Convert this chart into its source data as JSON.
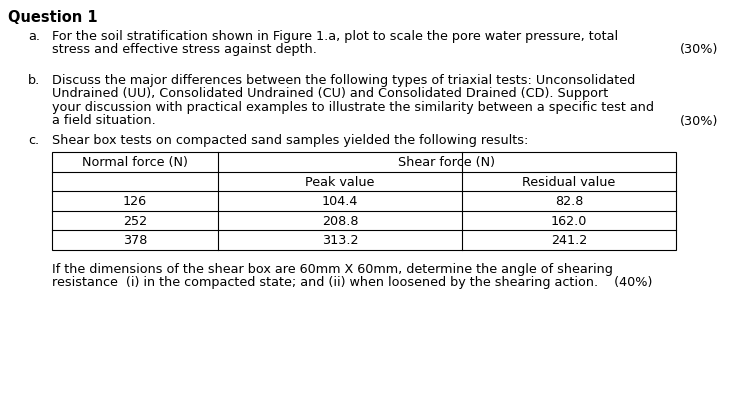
{
  "title": "Question 1",
  "title_fontsize": 10.5,
  "body_fontsize": 9.2,
  "background_color": "#ffffff",
  "text_color": "#000000",
  "part_a_label": "a.",
  "part_a_text_line1": "For the soil stratification shown in Figure 1.a, plot to scale the pore water pressure, total",
  "part_a_text_line2": "stress and effective stress against depth.",
  "part_a_mark": "(30%)",
  "part_b_label": "b.",
  "part_b_text_line1": "Discuss the major differences between the following types of triaxial tests: Unconsolidated",
  "part_b_text_line2": "Undrained (UU), Consolidated Undrained (CU) and Consolidated Drained (CD). Support",
  "part_b_text_line3": "your discussion with practical examples to illustrate the similarity between a specific test and",
  "part_b_text_line4": "a field situation.",
  "part_b_mark": "(30%)",
  "part_c_label": "c.",
  "part_c_text": "Shear box tests on compacted sand samples yielded the following results:",
  "table_col1_header": "Normal force (N)",
  "table_col2_header": "Shear force (N)",
  "table_sub_col2": "Peak value",
  "table_sub_col3": "Residual value",
  "table_data": [
    [
      126,
      104.4,
      82.8
    ],
    [
      252,
      208.8,
      162.0
    ],
    [
      378,
      313.2,
      241.2
    ]
  ],
  "footer_line1": "If the dimensions of the shear box are 60mm X 60mm, determine the angle of shearing",
  "footer_line2": "resistance  (i) in the compacted state; and (ii) when loosened by the shearing action.    (40%)"
}
